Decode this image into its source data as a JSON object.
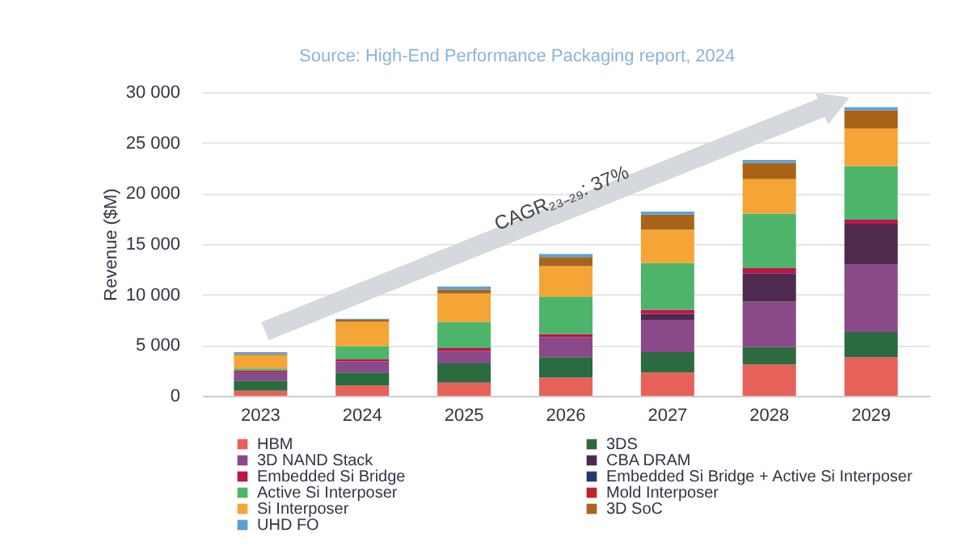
{
  "chart_data": {
    "type": "bar",
    "stacked": true,
    "ylabel": "Revenue ($M)",
    "annotations": [
      "Source: High-End Performance Packaging report, 2024",
      "CAGR₂₃₋₂₉: 37%"
    ],
    "categories": [
      "2023",
      "2024",
      "2025",
      "2026",
      "2027",
      "2028",
      "2029"
    ],
    "ylim": [
      0,
      30000
    ],
    "yticks": [
      0,
      {
        "value": 5000,
        "label": "5 000"
      },
      {
        "value": 10000,
        "label": "10 000"
      },
      {
        "value": 15000,
        "label": "15 000"
      },
      {
        "value": 20000,
        "label": "20 000"
      },
      {
        "value": 25000,
        "label": "25 000"
      },
      {
        "value": 30000,
        "label": "30 000"
      }
    ],
    "grid": "y",
    "legend": "bottom",
    "series": [
      {
        "name": "HBM",
        "color": "#e8605a",
        "values": [
          500,
          1000,
          1300,
          1800,
          2300,
          3100,
          3800
        ]
      },
      {
        "name": "3DS",
        "color": "#2a6b3f",
        "values": [
          1000,
          1300,
          1900,
          2000,
          2000,
          1700,
          2500
        ]
      },
      {
        "name": "3D NAND Stack",
        "color": "#8a4a8a",
        "values": [
          900,
          1100,
          1200,
          2000,
          3200,
          4500,
          6700
        ]
      },
      {
        "name": "CBA DRAM",
        "color": "#4e2a4e",
        "values": [
          0,
          0,
          0,
          0,
          600,
          2800,
          4000
        ]
      },
      {
        "name": "Embedded Si Bridge",
        "color": "#c0134a",
        "values": [
          100,
          200,
          300,
          300,
          400,
          500,
          400
        ]
      },
      {
        "name": "Embedded Si Bridge + Active Si Interposer",
        "color": "#1f3d6e",
        "values": [
          0,
          0,
          0,
          0,
          0,
          0,
          0
        ]
      },
      {
        "name": "Active Si Interposer",
        "color": "#4cb56a",
        "values": [
          200,
          1300,
          2600,
          3700,
          4600,
          5400,
          5300
        ]
      },
      {
        "name": "Mold Interposer",
        "color": "#c0232a",
        "values": [
          0,
          0,
          0,
          0,
          0,
          0,
          0
        ]
      },
      {
        "name": "Si Interposer",
        "color": "#f5a535",
        "values": [
          1300,
          2400,
          2800,
          3000,
          3300,
          3400,
          3700
        ]
      },
      {
        "name": "3D SoC",
        "color": "#a8651a",
        "values": [
          100,
          200,
          400,
          900,
          1500,
          1600,
          1800
        ]
      },
      {
        "name": "UHD FO",
        "color": "#5aa0d8",
        "values": [
          200,
          100,
          300,
          300,
          300,
          300,
          300
        ]
      }
    ]
  }
}
